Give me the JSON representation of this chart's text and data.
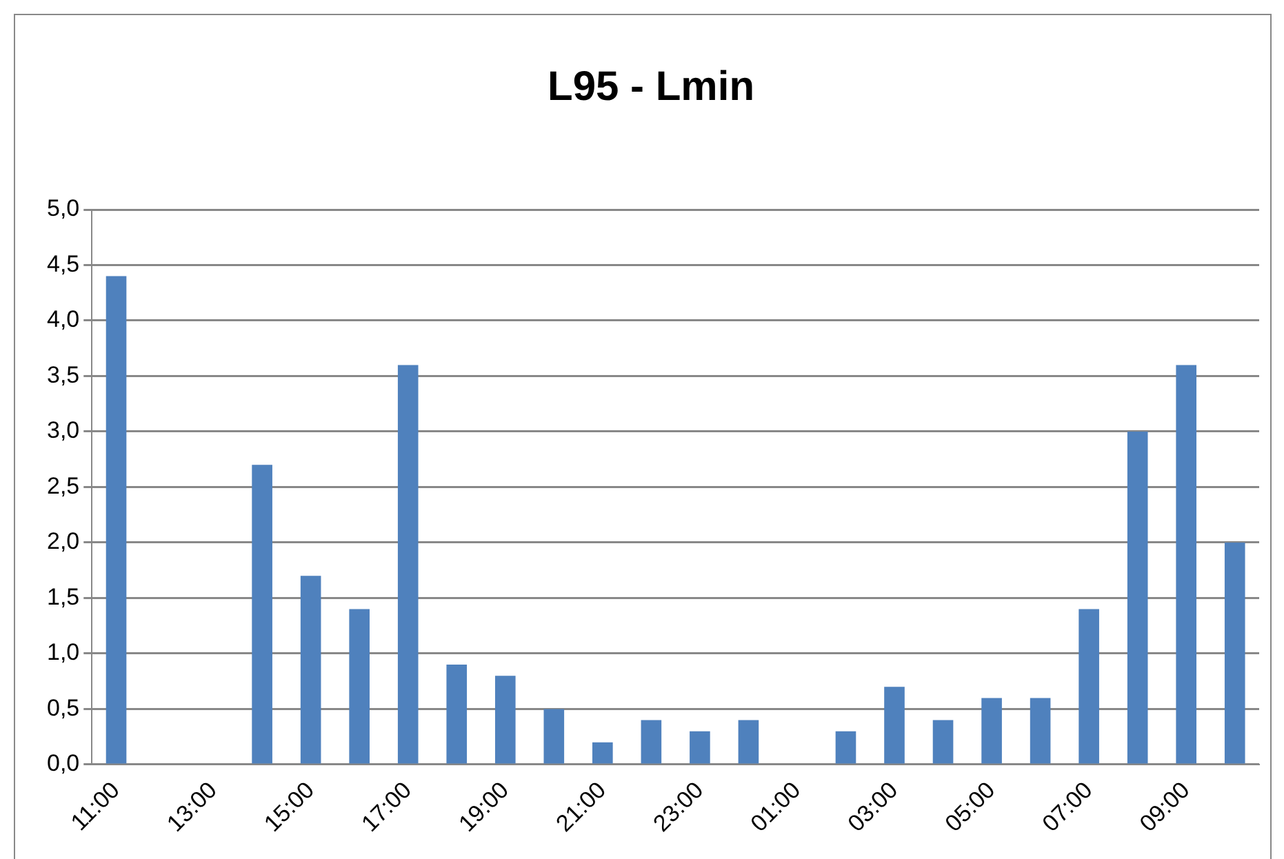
{
  "chart_data": {
    "type": "bar",
    "title": "L95 - Lmin",
    "categories": [
      "11:00",
      null,
      "13:00",
      null,
      "15:00",
      null,
      "17:00",
      null,
      "19:00",
      null,
      "21:00",
      null,
      "23:00",
      null,
      "01:00",
      null,
      "03:00",
      null,
      "05:00",
      null,
      "07:00",
      null,
      "09:00",
      null
    ],
    "values": [
      4.4,
      null,
      null,
      2.7,
      1.7,
      1.4,
      3.6,
      0.9,
      0.8,
      0.5,
      0.2,
      0.4,
      0.3,
      0.4,
      null,
      0.3,
      0.7,
      0.4,
      0.6,
      0.6,
      1.4,
      3.0,
      3.6,
      2.0
    ],
    "color": "#4f81bd",
    "ylim": [
      0,
      5
    ],
    "yticks": [
      {
        "value": 0,
        "label": "0,0"
      },
      {
        "value": 0.5,
        "label": "0,5"
      },
      {
        "value": 1,
        "label": "1,0"
      },
      {
        "value": 1.5,
        "label": "1,5"
      },
      {
        "value": 2,
        "label": "2,0"
      },
      {
        "value": 2.5,
        "label": "2,5"
      },
      {
        "value": 3,
        "label": "3,0"
      },
      {
        "value": 3.5,
        "label": "3,5"
      },
      {
        "value": 4,
        "label": "4,0"
      },
      {
        "value": 4.5,
        "label": "4,5"
      },
      {
        "value": 5,
        "label": "5,0"
      }
    ],
    "grid": "y",
    "legend": false
  }
}
